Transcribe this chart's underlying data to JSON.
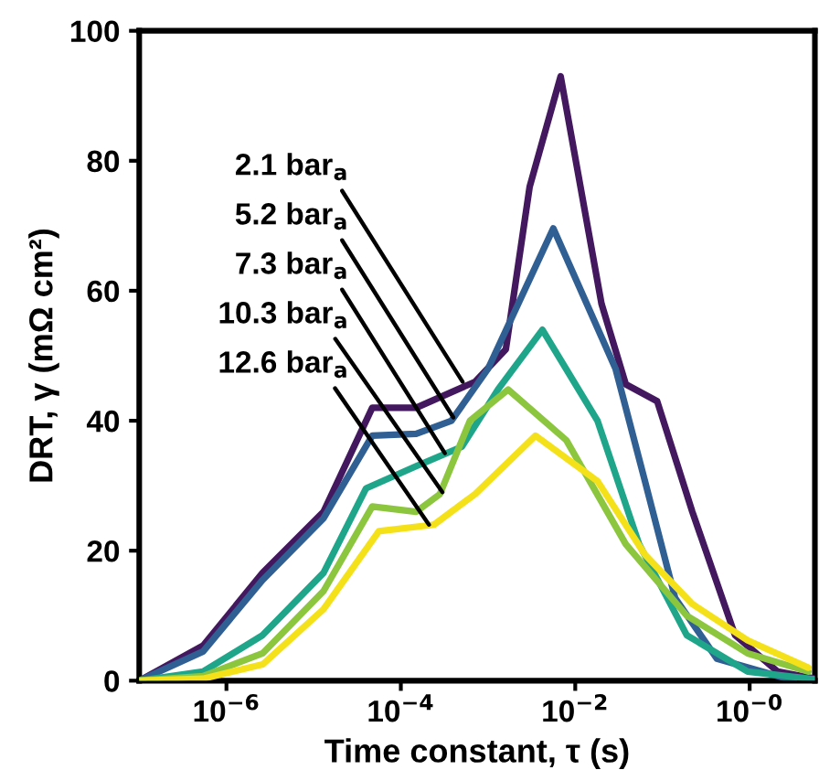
{
  "chart_data": {
    "type": "line",
    "xlabel": "Time constant, τ (s)",
    "ylabel": "DRT, γ (mΩ cm²)",
    "log": "x",
    "xlim": [
      1e-07,
      5.6
    ],
    "ylim": [
      0,
      100
    ],
    "xticks": [
      {
        "value": 1e-06,
        "label": "10$^{−6}$"
      },
      {
        "value": 0.0001,
        "label": "10$^{−4}$"
      },
      {
        "value": 0.01,
        "label": "10$^{−2}$"
      },
      {
        "value": 1,
        "label": "10$^{−0}$"
      }
    ],
    "yticks": [
      0,
      20,
      40,
      60,
      80,
      100
    ],
    "grid": false,
    "legend": false,
    "marker": "none",
    "line_style": "solid",
    "series": [
      {
        "color": "#43185e",
        "x": [
          1e-07,
          5.4e-07,
          2.6e-06,
          1.3e-05,
          4.7e-05,
          0.00015,
          0.00071,
          0.0016,
          0.003,
          0.0068,
          0.02,
          0.038,
          0.087,
          0.22,
          0.68,
          2.1,
          5.6
        ],
        "values": [
          0,
          5.4,
          16.6,
          26,
          42,
          42,
          46,
          51,
          76,
          93,
          58,
          45.6,
          43,
          26,
          7,
          1.4,
          0.3
        ]
      },
      {
        "color": "#2f5f93",
        "x": [
          1e-07,
          5.4e-07,
          2.6e-06,
          1.3e-05,
          4.7e-05,
          0.00015,
          0.00038,
          0.001,
          0.0056,
          0.029,
          0.063,
          0.14,
          0.42,
          3.2
        ],
        "values": [
          0,
          4.5,
          15.5,
          25,
          37.7,
          38,
          40,
          48,
          69.6,
          48,
          30.7,
          12.7,
          3.4,
          0
        ]
      },
      {
        "color": "#1fa68a",
        "x": [
          1e-07,
          5.4e-07,
          2.6e-06,
          1.3e-05,
          4e-05,
          0.00015,
          0.0005,
          0.0013,
          0.0042,
          0.018,
          0.054,
          0.19,
          0.95,
          5.6
        ],
        "values": [
          0,
          1.4,
          7,
          16.6,
          29.6,
          33,
          36,
          44.8,
          54,
          40,
          21,
          7,
          1.4,
          0.2
        ]
      },
      {
        "color": "#8cc63f",
        "x": [
          1e-07,
          5.4e-07,
          2.6e-06,
          1.3e-05,
          4.7e-05,
          0.00015,
          0.00028,
          0.00062,
          0.0017,
          0.0079,
          0.038,
          0.19,
          0.95,
          4.7
        ],
        "values": [
          0,
          0.7,
          4.2,
          13.8,
          26.8,
          26,
          28.7,
          40,
          44.8,
          37,
          21,
          10,
          4.2,
          1.4
        ]
      },
      {
        "color": "#f5e11a",
        "x": [
          1e-07,
          5.4e-07,
          2.6e-06,
          1.3e-05,
          5.6e-05,
          0.00024,
          0.00071,
          0.0035,
          0.018,
          0.063,
          0.22,
          0.95,
          4.7
        ],
        "values": [
          0,
          0.3,
          2.5,
          11,
          23,
          24,
          28.7,
          37.7,
          30.7,
          19.4,
          11.8,
          6.2,
          2
        ]
      }
    ],
    "annotations": [
      {
        "text": "2.1 bar$_{a}$",
        "x": 0.00051,
        "y": 46
      },
      {
        "text": "5.2 bar$_{a}$",
        "x": 0.0004,
        "y": 40.5
      },
      {
        "text": "7.3 bar$_{a}$",
        "x": 0.00032,
        "y": 35
      },
      {
        "text": "10.3 bar$_{a}$",
        "x": 0.0003,
        "y": 29
      },
      {
        "text": "12.6 bar$_{a}$",
        "x": 0.00021,
        "y": 24
      }
    ]
  }
}
